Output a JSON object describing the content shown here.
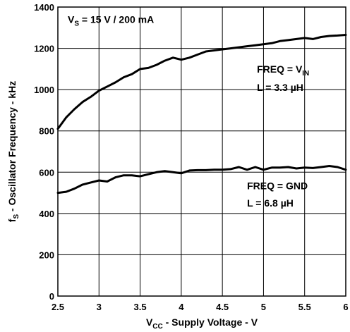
{
  "chart_data": {
    "type": "line",
    "xlabel": {
      "main": "V",
      "sub": "CC",
      "rest": " - Supply Voltage - V"
    },
    "ylabel": {
      "main": "f",
      "sub": "S",
      "rest": " - Oscillator Frequency - kHz"
    },
    "xlim": [
      2.5,
      6
    ],
    "ylim": [
      0,
      1400
    ],
    "xticks": [
      2.5,
      3,
      3.5,
      4,
      4.5,
      5,
      5.5,
      6
    ],
    "yticks": [
      0,
      200,
      400,
      600,
      800,
      1000,
      1200,
      1400
    ],
    "xtick_labels": [
      "2.5",
      "3",
      "3.5",
      "4",
      "4.5",
      "5",
      "5.5",
      "6"
    ],
    "ytick_labels": [
      "0",
      "200",
      "400",
      "600",
      "800",
      "1000",
      "1200",
      "1400"
    ],
    "grid": true,
    "annotations": [
      {
        "pre": "V",
        "sub": "S",
        "post": " = 15 V / 200 mA",
        "x": 2.62,
        "y": 1340
      },
      {
        "pre": "FREQ = V",
        "sub": "IN",
        "post": "",
        "x": 4.92,
        "y": 1100
      },
      {
        "pre": "L = 3.3 ",
        "sub": "",
        "post": "µH",
        "x": 4.92,
        "y": 1010
      },
      {
        "pre": "FREQ = GND",
        "sub": "",
        "post": "",
        "x": 4.8,
        "y": 535
      },
      {
        "pre": "L = 6.8 ",
        "sub": "",
        "post": "µH",
        "x": 4.8,
        "y": 450
      }
    ],
    "series": [
      {
        "values": [
          [
            2.5,
            810
          ],
          [
            2.6,
            865
          ],
          [
            2.7,
            905
          ],
          [
            2.8,
            940
          ],
          [
            2.9,
            965
          ],
          [
            3.0,
            995
          ],
          [
            3.1,
            1015
          ],
          [
            3.2,
            1035
          ],
          [
            3.3,
            1060
          ],
          [
            3.4,
            1075
          ],
          [
            3.5,
            1100
          ],
          [
            3.6,
            1105
          ],
          [
            3.7,
            1120
          ],
          [
            3.8,
            1140
          ],
          [
            3.9,
            1155
          ],
          [
            4.0,
            1145
          ],
          [
            4.1,
            1155
          ],
          [
            4.2,
            1170
          ],
          [
            4.3,
            1185
          ],
          [
            4.4,
            1190
          ],
          [
            4.5,
            1195
          ],
          [
            4.6,
            1200
          ],
          [
            4.7,
            1205
          ],
          [
            4.8,
            1210
          ],
          [
            4.9,
            1215
          ],
          [
            5.0,
            1220
          ],
          [
            5.1,
            1225
          ],
          [
            5.2,
            1235
          ],
          [
            5.3,
            1240
          ],
          [
            5.4,
            1245
          ],
          [
            5.5,
            1250
          ],
          [
            5.6,
            1245
          ],
          [
            5.7,
            1255
          ],
          [
            5.8,
            1260
          ],
          [
            5.9,
            1262
          ],
          [
            6.0,
            1265
          ]
        ]
      },
      {
        "values": [
          [
            2.5,
            500
          ],
          [
            2.6,
            505
          ],
          [
            2.7,
            520
          ],
          [
            2.8,
            540
          ],
          [
            2.9,
            550
          ],
          [
            3.0,
            560
          ],
          [
            3.1,
            555
          ],
          [
            3.2,
            575
          ],
          [
            3.3,
            585
          ],
          [
            3.4,
            585
          ],
          [
            3.5,
            580
          ],
          [
            3.6,
            590
          ],
          [
            3.7,
            600
          ],
          [
            3.8,
            605
          ],
          [
            3.9,
            600
          ],
          [
            4.0,
            595
          ],
          [
            4.1,
            608
          ],
          [
            4.2,
            610
          ],
          [
            4.3,
            610
          ],
          [
            4.4,
            612
          ],
          [
            4.5,
            612
          ],
          [
            4.6,
            615
          ],
          [
            4.7,
            625
          ],
          [
            4.8,
            612
          ],
          [
            4.9,
            625
          ],
          [
            5.0,
            612
          ],
          [
            5.1,
            622
          ],
          [
            5.2,
            622
          ],
          [
            5.3,
            625
          ],
          [
            5.4,
            618
          ],
          [
            5.5,
            622
          ],
          [
            5.6,
            620
          ],
          [
            5.7,
            625
          ],
          [
            5.8,
            630
          ],
          [
            5.9,
            625
          ],
          [
            6.0,
            612
          ]
        ]
      }
    ]
  }
}
